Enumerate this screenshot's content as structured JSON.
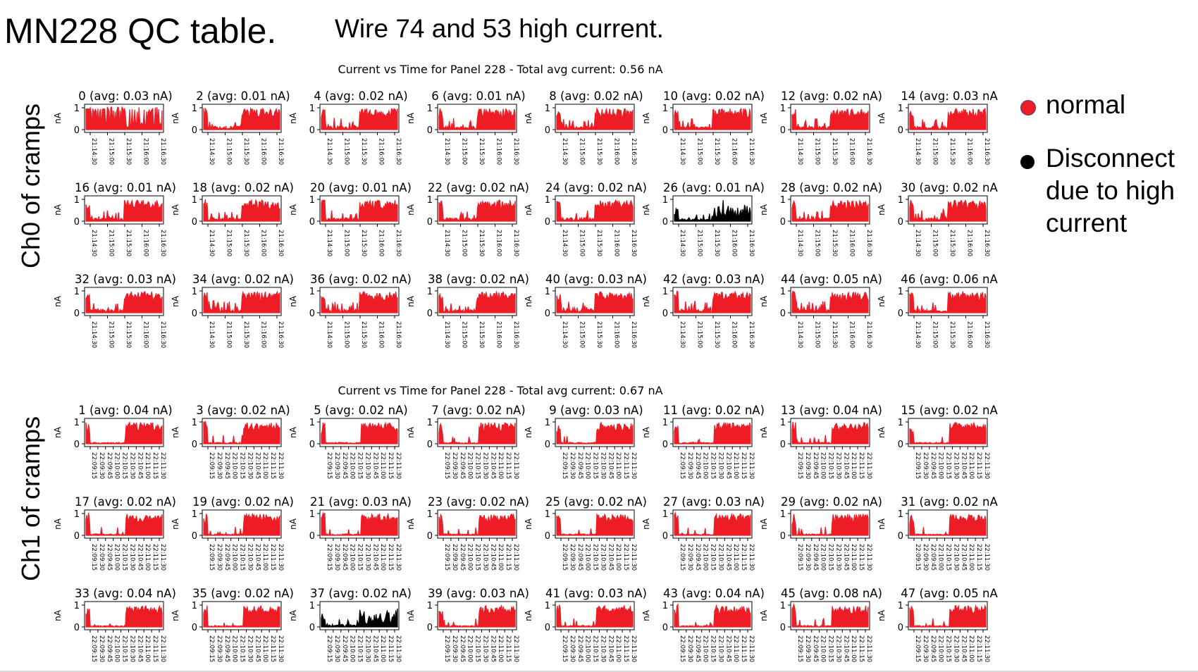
{
  "slide": {
    "title": "MN228 QC table.",
    "subtitle": "Wire 74 and 53 high current.",
    "section_labels": [
      "Ch0 of cramps",
      "Ch1 of cramps"
    ]
  },
  "legend": {
    "items": [
      {
        "label": "normal",
        "color": "#ee1c25"
      },
      {
        "label": "Disconnect due to high current",
        "color": "#000000"
      }
    ]
  },
  "colors": {
    "normal": "#ee1c25",
    "disconnected": "#000000"
  },
  "chart_data": [
    {
      "type": "line",
      "title": "Current vs Time for Panel 228 - Total avg current: 0.56 nA",
      "ylabel": "nA",
      "ylim": [
        0,
        1
      ],
      "yticks": [
        "0",
        "1"
      ],
      "xticks": [
        "21:14:30",
        "21:15:00",
        "21:15:30",
        "21:16:00",
        "21:16:30"
      ],
      "panels": [
        {
          "title": "0 (avg: 0.03 nA)",
          "status": "normal",
          "pattern": "dense"
        },
        {
          "title": "2 (avg: 0.01 nA)",
          "status": "normal",
          "pattern": "spike_then_rise"
        },
        {
          "title": "4 (avg: 0.02 nA)",
          "status": "normal",
          "pattern": "spike_then_rise"
        },
        {
          "title": "6 (avg: 0.01 nA)",
          "status": "normal",
          "pattern": "spike_then_rise"
        },
        {
          "title": "8 (avg: 0.02 nA)",
          "status": "normal",
          "pattern": "spike_then_rise"
        },
        {
          "title": "10 (avg: 0.02 nA)",
          "status": "normal",
          "pattern": "spike_then_rise"
        },
        {
          "title": "12 (avg: 0.02 nA)",
          "status": "normal",
          "pattern": "spike_then_rise"
        },
        {
          "title": "14 (avg: 0.03 nA",
          "status": "normal",
          "pattern": "spike_then_rise"
        },
        {
          "title": "16 (avg: 0.01 nA)",
          "status": "normal",
          "pattern": "spike_then_rise"
        },
        {
          "title": "18 (avg: 0.02 nA)",
          "status": "normal",
          "pattern": "spike_then_rise"
        },
        {
          "title": "20 (avg: 0.01 nA)",
          "status": "normal",
          "pattern": "spike_then_rise"
        },
        {
          "title": "22 (avg: 0.02 nA)",
          "status": "normal",
          "pattern": "spike_then_rise"
        },
        {
          "title": "24 (avg: 0.02 nA)",
          "status": "normal",
          "pattern": "spike_then_rise"
        },
        {
          "title": "26 (avg: 0.01 nA)",
          "status": "disconnected",
          "pattern": "noisy_low"
        },
        {
          "title": "28 (avg: 0.02 nA)",
          "status": "normal",
          "pattern": "spike_then_rise"
        },
        {
          "title": "30 (avg: 0.02 nA",
          "status": "normal",
          "pattern": "spike_then_rise"
        },
        {
          "title": "32 (avg: 0.03 nA)",
          "status": "normal",
          "pattern": "spike_then_rise"
        },
        {
          "title": "34 (avg: 0.02 nA)",
          "status": "normal",
          "pattern": "spike_then_rise"
        },
        {
          "title": "36 (avg: 0.02 nA)",
          "status": "normal",
          "pattern": "spike_then_rise"
        },
        {
          "title": "38 (avg: 0.02 nA)",
          "status": "normal",
          "pattern": "spike_then_rise"
        },
        {
          "title": "40 (avg: 0.03 nA)",
          "status": "normal",
          "pattern": "spike_then_rise"
        },
        {
          "title": "42 (avg: 0.03 nA)",
          "status": "normal",
          "pattern": "spike_then_rise"
        },
        {
          "title": "44 (avg: 0.05 nA)",
          "status": "normal",
          "pattern": "spike_then_rise"
        },
        {
          "title": "46 (avg: 0.06 nA",
          "status": "normal",
          "pattern": "spike_then_rise"
        }
      ]
    },
    {
      "type": "line",
      "title": "Current vs Time for Panel 228 - Total avg current: 0.67 nA",
      "ylabel": "nA",
      "ylim": [
        0,
        1
      ],
      "yticks": [
        "0",
        "1"
      ],
      "xticks": [
        "22:09:15",
        "22:09:30",
        "22:09:45",
        "22:10:00",
        "22:10:15",
        "22:10:30",
        "22:10:45",
        "22:11:00",
        "22:11:15",
        "22:11:30"
      ],
      "panels": [
        {
          "title": "1 (avg: 0.04 nA)",
          "status": "normal",
          "pattern": "spike_gap_rise"
        },
        {
          "title": "3 (avg: 0.02 nA)",
          "status": "normal",
          "pattern": "spike_gap_rise"
        },
        {
          "title": "5 (avg: 0.02 nA)",
          "status": "normal",
          "pattern": "spike_gap_rise"
        },
        {
          "title": "7 (avg: 0.02 nA)",
          "status": "normal",
          "pattern": "spike_gap_rise"
        },
        {
          "title": "9 (avg: 0.03 nA)",
          "status": "normal",
          "pattern": "spike_gap_rise"
        },
        {
          "title": "11 (avg: 0.02 nA)",
          "status": "normal",
          "pattern": "spike_gap_rise"
        },
        {
          "title": "13 (avg: 0.04 nA)",
          "status": "normal",
          "pattern": "spike_gap_rise"
        },
        {
          "title": "15 (avg: 0.02 nA",
          "status": "normal",
          "pattern": "spike_gap_rise"
        },
        {
          "title": "17 (avg: 0.02 nA)",
          "status": "normal",
          "pattern": "spike_gap_rise"
        },
        {
          "title": "19 (avg: 0.02 nA)",
          "status": "normal",
          "pattern": "spike_gap_rise"
        },
        {
          "title": "21 (avg: 0.03 nA)",
          "status": "normal",
          "pattern": "spike_gap_rise"
        },
        {
          "title": "23 (avg: 0.02 nA)",
          "status": "normal",
          "pattern": "spike_gap_rise"
        },
        {
          "title": "25 (avg: 0.02 nA)",
          "status": "normal",
          "pattern": "spike_gap_rise"
        },
        {
          "title": "27 (avg: 0.03 nA)",
          "status": "normal",
          "pattern": "spike_gap_rise"
        },
        {
          "title": "29 (avg: 0.02 nA)",
          "status": "normal",
          "pattern": "spike_gap_rise"
        },
        {
          "title": "31 (avg: 0.02 nA",
          "status": "normal",
          "pattern": "spike_gap_rise"
        },
        {
          "title": "33 (avg: 0.04 nA)",
          "status": "normal",
          "pattern": "spike_gap_rise"
        },
        {
          "title": "35 (avg: 0.02 nA)",
          "status": "normal",
          "pattern": "spike_gap_rise"
        },
        {
          "title": "37 (avg: 0.02 nA)",
          "status": "disconnected",
          "pattern": "noisy_low"
        },
        {
          "title": "39 (avg: 0.03 nA)",
          "status": "normal",
          "pattern": "spike_gap_rise"
        },
        {
          "title": "41 (avg: 0.03 nA)",
          "status": "normal",
          "pattern": "spike_gap_rise"
        },
        {
          "title": "43 (avg: 0.04 nA)",
          "status": "normal",
          "pattern": "spike_gap_rise"
        },
        {
          "title": "45 (avg: 0.08 nA)",
          "status": "normal",
          "pattern": "spike_gap_rise"
        },
        {
          "title": "47 (avg: 0.05 nA",
          "status": "normal",
          "pattern": "spike_gap_rise"
        }
      ]
    }
  ]
}
